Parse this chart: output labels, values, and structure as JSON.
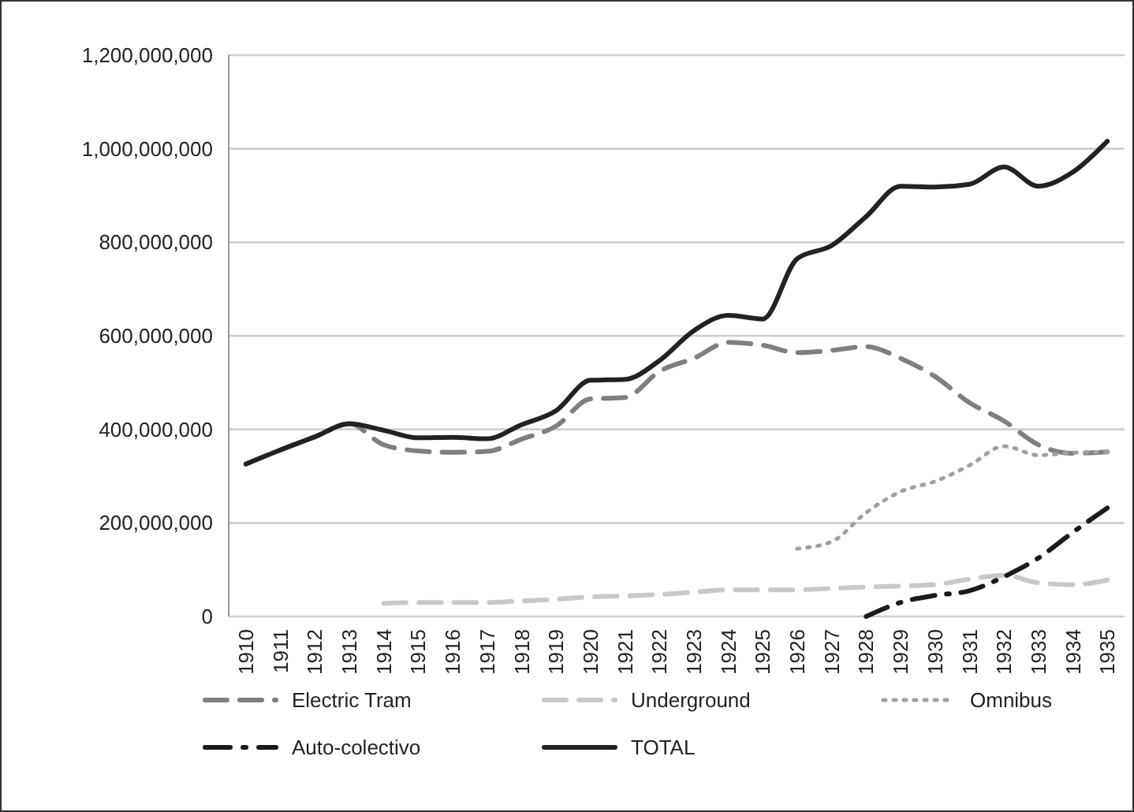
{
  "chart_data": {
    "type": "line",
    "categories": [
      "1910",
      "1911",
      "1912",
      "1913",
      "1914",
      "1915",
      "1916",
      "1917",
      "1918",
      "1919",
      "1920",
      "1921",
      "1922",
      "1923",
      "1924",
      "1925",
      "1926",
      "1927",
      "1928",
      "1929",
      "1930",
      "1931",
      "1932",
      "1933",
      "1934",
      "1935"
    ],
    "series": [
      {
        "name": "Electric Tram",
        "color": "#7f7f7f",
        "line_style": "dashed",
        "values": [
          326000000,
          356000000,
          384000000,
          412000000,
          367000000,
          354000000,
          351000000,
          353000000,
          379000000,
          407000000,
          465000000,
          468000000,
          524000000,
          552000000,
          586000000,
          580000000,
          564000000,
          569000000,
          577000000,
          552000000,
          513000000,
          457000000,
          418000000,
          367000000,
          349000000,
          352000000
        ]
      },
      {
        "name": "Underground",
        "color": "#c8c8c8",
        "line_style": "dashed",
        "values": [
          null,
          null,
          null,
          null,
          28000000,
          30000000,
          30000000,
          30000000,
          33000000,
          37000000,
          42000000,
          44000000,
          47000000,
          52000000,
          57000000,
          57000000,
          57000000,
          60000000,
          63000000,
          65000000,
          68000000,
          80000000,
          88000000,
          72000000,
          68000000,
          78000000
        ]
      },
      {
        "name": "Omnibus",
        "color": "#a0a0a0",
        "line_style": "dotted",
        "values": [
          null,
          null,
          null,
          null,
          null,
          null,
          null,
          null,
          null,
          null,
          null,
          null,
          null,
          null,
          null,
          null,
          145000000,
          160000000,
          222000000,
          267000000,
          289000000,
          323000000,
          364000000,
          345000000,
          350000000,
          352000000
        ]
      },
      {
        "name": "Auto-colectivo",
        "color": "#1a1a1a",
        "line_style": "dashdot",
        "values": [
          null,
          null,
          null,
          null,
          null,
          null,
          null,
          null,
          null,
          null,
          null,
          null,
          null,
          null,
          null,
          null,
          null,
          null,
          0,
          30000000,
          45000000,
          55000000,
          85000000,
          125000000,
          180000000,
          232000000
        ]
      },
      {
        "name": "TOTAL",
        "color": "#222222",
        "line_style": "solid",
        "values": [
          326000000,
          356000000,
          384000000,
          412000000,
          398000000,
          382000000,
          383000000,
          380000000,
          410000000,
          440000000,
          505000000,
          507000000,
          547000000,
          611000000,
          644000000,
          636000000,
          765000000,
          793000000,
          855000000,
          920000000,
          918000000,
          924000000,
          961000000,
          920000000,
          950000000,
          1016000000
        ]
      }
    ],
    "ylim": [
      0,
      1200000000
    ],
    "yticks": [
      0,
      {
        "value": 200000000,
        "label": "200,000,000"
      },
      {
        "value": 400000000,
        "label": "400,000,000"
      },
      {
        "value": 600000000,
        "label": "600,000,000"
      },
      {
        "value": 800000000,
        "label": "800,000,000"
      },
      {
        "value": 1000000000,
        "label": "1,000,000,000"
      },
      {
        "value": 1200000000,
        "label": "1,200,000,000"
      }
    ],
    "grid": "y",
    "legend": "bottom",
    "marker": "none"
  }
}
